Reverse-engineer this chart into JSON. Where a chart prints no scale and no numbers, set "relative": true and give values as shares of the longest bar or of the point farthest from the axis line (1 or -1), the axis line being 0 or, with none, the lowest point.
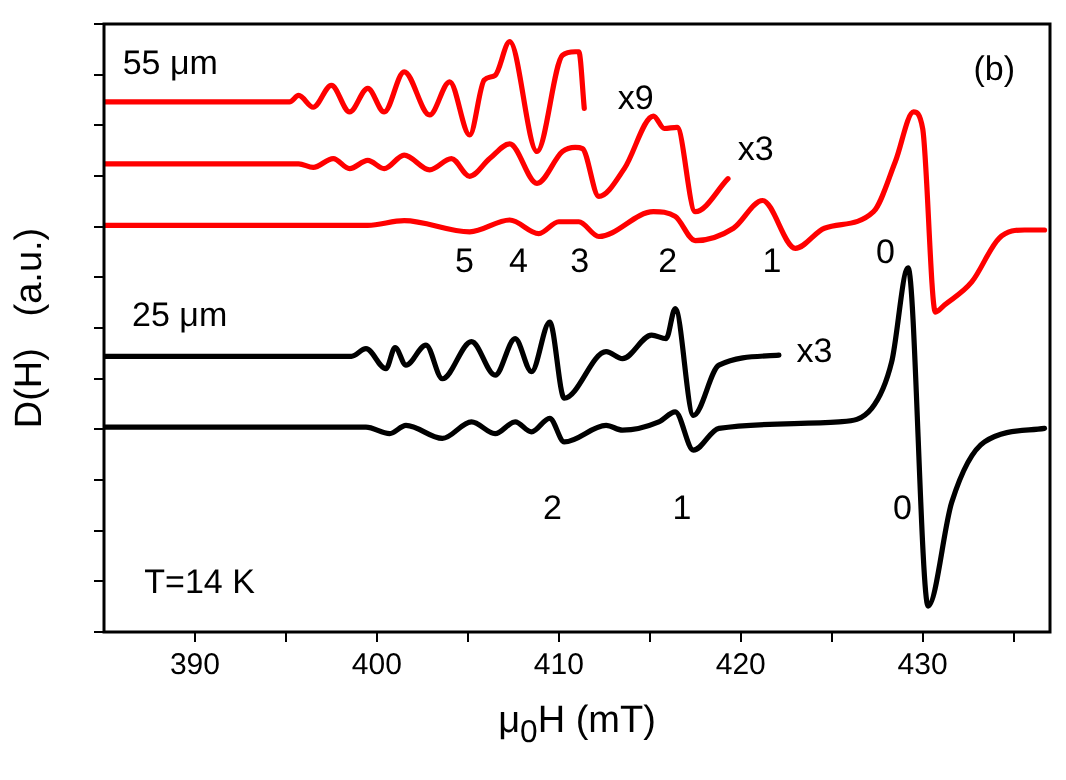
{
  "chart_data": {
    "type": "line",
    "relative": true,
    "xlabel": "μ$_{0}$H   (mT)",
    "ylabel": "D(H)   (a.u.)",
    "xlim": [
      385,
      437
    ],
    "xticks": [
      390,
      {
        "value": 395,
        "label": null
      },
      400,
      {
        "value": 405,
        "label": null
      },
      410,
      {
        "value": 415,
        "label": null
      },
      420,
      {
        "value": 425,
        "label": null
      },
      430,
      {
        "value": 435,
        "label": null
      }
    ],
    "grid": false,
    "legend": false,
    "marker": "none",
    "line_style": "solid",
    "series": [
      {
        "color": "#ff0000",
        "x": [
          385,
          395.2,
          395.7,
          396.5,
          397.5,
          398.5,
          399.5,
          400.4,
          401.5,
          402.9,
          404.0,
          405.1,
          405.9,
          406.5,
          407.3,
          408.8,
          410.2,
          410.9,
          411.1,
          411.4
        ],
        "values": [
          0.898,
          0.898,
          0.909,
          0.889,
          0.926,
          0.881,
          0.921,
          0.881,
          0.949,
          0.876,
          0.932,
          0.842,
          0.935,
          0.943,
          1.0,
          0.814,
          0.977,
          0.983,
          0.983,
          0.887
        ]
      },
      {
        "color": "#ff0000",
        "x": [
          385,
          395.7,
          396.5,
          397.6,
          398.5,
          399.5,
          400.4,
          401.5,
          402.9,
          404.1,
          405.1,
          406.2,
          407.3,
          408.8,
          410.2,
          410.9,
          411.3,
          412.2,
          413.6,
          415.2,
          415.8,
          416.5,
          417.5,
          419.3
        ],
        "values": [
          0.793,
          0.793,
          0.787,
          0.802,
          0.785,
          0.799,
          0.785,
          0.808,
          0.783,
          0.802,
          0.772,
          0.802,
          0.827,
          0.76,
          0.814,
          0.821,
          0.819,
          0.738,
          0.785,
          0.874,
          0.853,
          0.855,
          0.712,
          0.768
        ]
      },
      {
        "color": "#ff0000",
        "x": [
          385,
          399.5,
          401.5,
          405.1,
          407.3,
          408.9,
          410.0,
          411.1,
          412.2,
          415.2,
          416.4,
          417.5,
          419.6,
          421.2,
          423.0,
          424.6,
          427.3,
          428.5,
          429.5,
          430.0,
          430.7,
          431.2,
          432.7,
          434.2,
          435.6,
          436.7
        ],
        "values": [
          0.689,
          0.689,
          0.697,
          0.678,
          0.698,
          0.675,
          0.695,
          0.695,
          0.67,
          0.712,
          0.704,
          0.663,
          0.684,
          0.731,
          0.65,
          0.684,
          0.712,
          0.797,
          0.881,
          0.853,
          0.542,
          0.554,
          0.593,
          0.667,
          0.681,
          0.681
        ]
      },
      {
        "color": "#000000",
        "x": [
          385,
          398.6,
          399.4,
          400.5,
          401.0,
          401.6,
          402.7,
          403.6,
          405.2,
          406.5,
          407.6,
          408.5,
          409.5,
          410.3,
          412.6,
          413.5,
          415.1,
          415.9,
          416.4,
          417.4,
          418.8,
          422.1
        ],
        "values": [
          0.467,
          0.467,
          0.48,
          0.446,
          0.482,
          0.452,
          0.486,
          0.429,
          0.492,
          0.435,
          0.497,
          0.441,
          0.525,
          0.396,
          0.475,
          0.463,
          0.503,
          0.497,
          0.548,
          0.367,
          0.452,
          0.469
        ]
      },
      {
        "color": "#000000",
        "x": [
          385,
          399.4,
          400.7,
          401.6,
          403.6,
          405.2,
          406.5,
          407.6,
          408.5,
          409.5,
          410.3,
          412.6,
          413.5,
          415.5,
          416.4,
          417.4,
          418.8,
          425.4,
          427.2,
          428.3,
          429.2,
          430.3,
          431.6,
          433.4,
          436.7
        ],
        "values": [
          0.347,
          0.347,
          0.336,
          0.35,
          0.328,
          0.356,
          0.336,
          0.356,
          0.339,
          0.362,
          0.322,
          0.35,
          0.342,
          0.356,
          0.373,
          0.308,
          0.345,
          0.356,
          0.379,
          0.458,
          0.617,
          0.044,
          0.22,
          0.322,
          0.345
        ]
      }
    ],
    "annotations": [
      "55 μm",
      "x9",
      "x3",
      "(b)",
      "5",
      "4",
      "3",
      "2",
      "1",
      "0",
      "25 μm",
      "x3",
      "2",
      "1",
      "0",
      "T=14 K"
    ]
  }
}
